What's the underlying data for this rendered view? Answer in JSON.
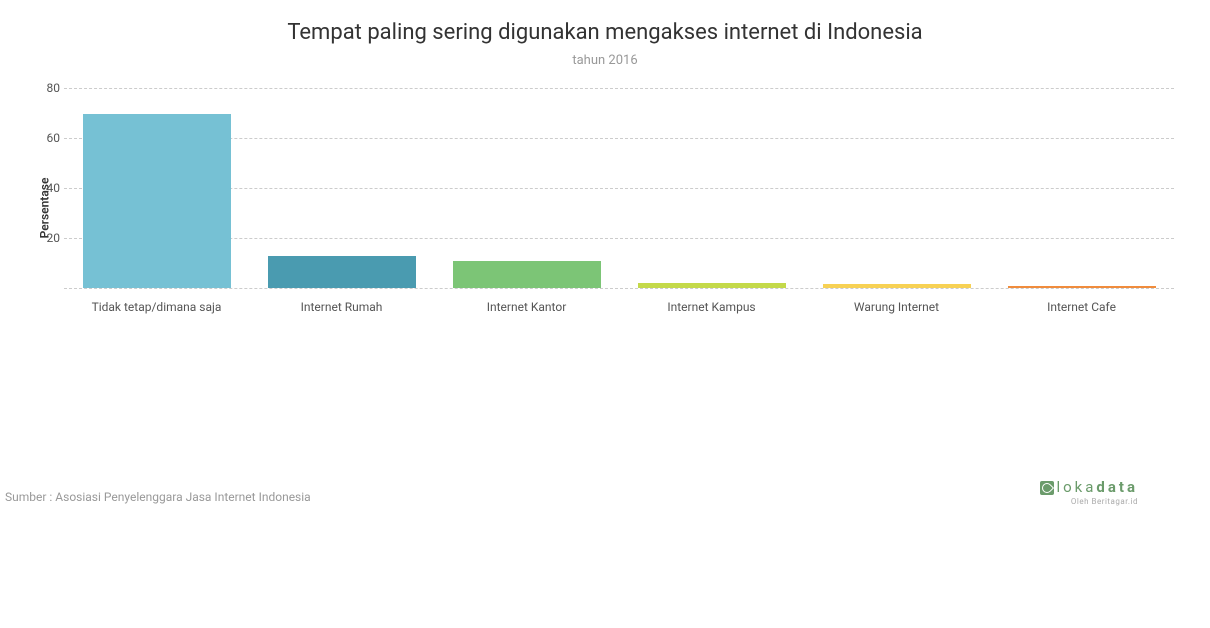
{
  "chart": {
    "type": "bar",
    "title": "Tempat paling sering digunakan mengakses internet di Indonesia",
    "title_fontsize": 22,
    "title_color": "#333333",
    "subtitle": "tahun 2016",
    "subtitle_fontsize": 13,
    "subtitle_color": "#999999",
    "ylabel": "Persentase",
    "ylabel_fontsize": 12,
    "ylim": [
      0,
      80
    ],
    "yticks": [
      20,
      40,
      60,
      80
    ],
    "ytick_fontsize": 12,
    "grid_color": "#cccccc",
    "grid_style": "dashed",
    "background_color": "#ffffff",
    "bar_width_ratio": 0.8,
    "categories": [
      "Tidak tetap/dimana saja",
      "Internet Rumah",
      "Internet Kantor",
      "Internet Kampus",
      "Warung Internet",
      "Internet Cafe"
    ],
    "values": [
      69.5,
      13.0,
      11.0,
      2.2,
      1.5,
      1.0
    ],
    "bar_colors": [
      "#76c1d4",
      "#4a9bb0",
      "#7cc576",
      "#c4d94a",
      "#f7d154",
      "#f08c3c"
    ],
    "xlabel_fontsize": 12,
    "xlabel_color": "#555555"
  },
  "footer": {
    "source_text": "Sumber : Asosiasi Penyelenggara Jasa Internet Indonesia",
    "source_fontsize": 12,
    "source_color": "#999999"
  },
  "logo": {
    "prefix": "loka",
    "suffix": "data",
    "color": "#6b9b6b",
    "subtext": "Oleh Beritagar.id",
    "subtext_color": "#aaaaaa"
  }
}
